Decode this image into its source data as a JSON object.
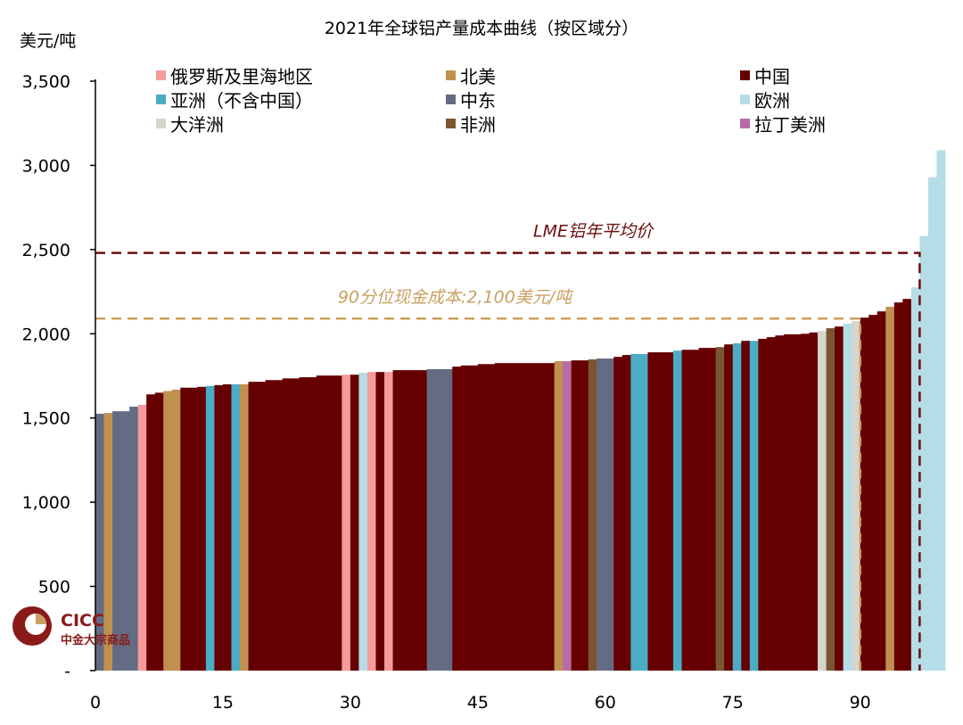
{
  "chart_data": {
    "type": "bar",
    "title": "2021年全球铝产量成本曲线（按区域分）",
    "ylabel": "美元/吨",
    "xlabel": "",
    "xlim": [
      0,
      100
    ],
    "ylim": [
      0,
      3500
    ],
    "xticks": [
      0,
      15,
      30,
      45,
      60,
      75,
      90
    ],
    "yticks": [
      {
        "value": 0,
        "label": "-"
      },
      {
        "value": 500,
        "label": "500"
      },
      {
        "value": 1000,
        "label": "1,000"
      },
      {
        "value": 1500,
        "label": "1,500"
      },
      {
        "value": 2000,
        "label": "2,000"
      },
      {
        "value": 2500,
        "label": "2,500"
      },
      {
        "value": 3000,
        "label": "3,000"
      },
      {
        "value": 3500,
        "label": "3,500"
      }
    ],
    "grid": false,
    "legend_position": "top",
    "regions": [
      {
        "key": "russia",
        "name": "俄罗斯及里海地区",
        "color": "#f79a9a"
      },
      {
        "key": "namerica",
        "name": "北美",
        "color": "#c0904f"
      },
      {
        "key": "china",
        "name": "中国",
        "color": "#660000"
      },
      {
        "key": "asia",
        "name": "亚洲（不含中国）",
        "color": "#4bacc6"
      },
      {
        "key": "mideast",
        "name": "中东",
        "color": "#646c84"
      },
      {
        "key": "europe",
        "name": "欧洲",
        "color": "#b5dde8"
      },
      {
        "key": "oceania",
        "name": "大洋洲",
        "color": "#d5d5cc"
      },
      {
        "key": "africa",
        "name": "非洲",
        "color": "#7a5530"
      },
      {
        "key": "latam",
        "name": "拉丁美洲",
        "color": "#b96aa8"
      }
    ],
    "segments": [
      [
        0,
        1,
        1525,
        "mideast"
      ],
      [
        1,
        2,
        1530,
        "namerica"
      ],
      [
        2,
        4,
        1540,
        "mideast"
      ],
      [
        4,
        5,
        1567,
        "mideast"
      ],
      [
        5,
        6,
        1578,
        "russia"
      ],
      [
        6,
        7,
        1640,
        "china"
      ],
      [
        7,
        8,
        1650,
        "china"
      ],
      [
        8,
        9,
        1660,
        "namerica"
      ],
      [
        9,
        10,
        1668,
        "namerica"
      ],
      [
        10,
        12,
        1680,
        "china"
      ],
      [
        12,
        13,
        1685,
        "china"
      ],
      [
        13,
        14,
        1690,
        "asia"
      ],
      [
        14,
        15,
        1695,
        "china"
      ],
      [
        15,
        16,
        1700,
        "china"
      ],
      [
        16,
        17,
        1700,
        "asia"
      ],
      [
        17,
        18,
        1700,
        "namerica"
      ],
      [
        18,
        20,
        1715,
        "china"
      ],
      [
        20,
        22,
        1725,
        "china"
      ],
      [
        22,
        24,
        1735,
        "china"
      ],
      [
        24,
        26,
        1742,
        "china"
      ],
      [
        26,
        29,
        1752,
        "china"
      ],
      [
        29,
        30,
        1757,
        "russia"
      ],
      [
        30,
        31,
        1757,
        "china"
      ],
      [
        31,
        32,
        1768,
        "europe"
      ],
      [
        32,
        33,
        1773,
        "russia"
      ],
      [
        33,
        34,
        1773,
        "china"
      ],
      [
        34,
        35,
        1773,
        "russia"
      ],
      [
        35,
        39,
        1784,
        "china"
      ],
      [
        39,
        42,
        1790,
        "mideast"
      ],
      [
        42,
        43,
        1805,
        "china"
      ],
      [
        43,
        45,
        1812,
        "china"
      ],
      [
        45,
        47,
        1820,
        "china"
      ],
      [
        47,
        54,
        1826,
        "china"
      ],
      [
        54,
        55,
        1837,
        "namerica"
      ],
      [
        55,
        56,
        1837,
        "latam"
      ],
      [
        56,
        58,
        1842,
        "china"
      ],
      [
        58,
        59,
        1848,
        "africa"
      ],
      [
        59,
        61,
        1853,
        "mideast"
      ],
      [
        61,
        62,
        1863,
        "china"
      ],
      [
        62,
        63,
        1874,
        "china"
      ],
      [
        63,
        65,
        1880,
        "asia"
      ],
      [
        65,
        68,
        1890,
        "china"
      ],
      [
        68,
        69,
        1900,
        "asia"
      ],
      [
        69,
        71,
        1905,
        "china"
      ],
      [
        71,
        73,
        1916,
        "china"
      ],
      [
        73,
        74,
        1921,
        "africa"
      ],
      [
        74,
        75,
        1937,
        "china"
      ],
      [
        75,
        76,
        1943,
        "asia"
      ],
      [
        76,
        77,
        1958,
        "china"
      ],
      [
        77,
        78,
        1958,
        "asia"
      ],
      [
        78,
        79,
        1970,
        "china"
      ],
      [
        79,
        80,
        1980,
        "china"
      ],
      [
        80,
        81,
        1990,
        "china"
      ],
      [
        81,
        83,
        1997,
        "china"
      ],
      [
        83,
        84,
        2000,
        "china"
      ],
      [
        84,
        85,
        2008,
        "china"
      ],
      [
        85,
        86,
        2017,
        "oceania"
      ],
      [
        86,
        87,
        2033,
        "africa"
      ],
      [
        87,
        88,
        2043,
        "china"
      ],
      [
        88,
        89,
        2060,
        "europe"
      ],
      [
        89,
        90,
        2075,
        "oceania"
      ],
      [
        90,
        91,
        2096,
        "china"
      ],
      [
        91,
        92,
        2112,
        "china"
      ],
      [
        92,
        93,
        2133,
        "china"
      ],
      [
        93,
        94,
        2160,
        "namerica"
      ],
      [
        94,
        95,
        2186,
        "china"
      ],
      [
        95,
        96,
        2207,
        "china"
      ],
      [
        96,
        97,
        2276,
        "europe"
      ],
      [
        97,
        98,
        2580,
        "europe"
      ],
      [
        98,
        99,
        2930,
        "europe"
      ],
      [
        99,
        100,
        3090,
        "europe"
      ]
    ],
    "reference_lines": [
      {
        "label": "LME铝年平均价",
        "value": 2480,
        "x_end": 97,
        "color": "#6b0f0f"
      },
      {
        "label": "90分位现金成本:2,100美元/吨",
        "value": 2090,
        "x_end": 90,
        "color": "#c9a060"
      }
    ]
  },
  "logo": {
    "name": "CICC",
    "subtitle": "中金大宗商品"
  }
}
